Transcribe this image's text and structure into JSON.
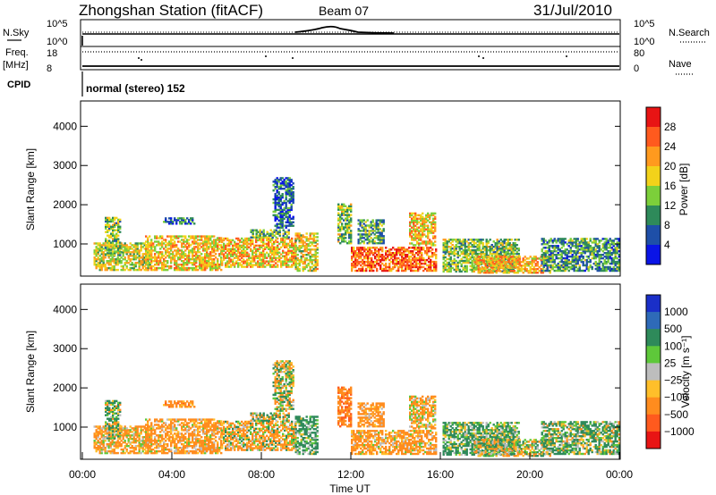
{
  "header": {
    "title": "Zhongshan Station (fitACF)",
    "beam": "Beam 07",
    "date": "31/Jul/2010"
  },
  "strip_panels": {
    "nsky_label": "N.Sky",
    "nsearch_label": "N.Search",
    "log_ticks_left": [
      "10^5",
      "10^0"
    ],
    "log_ticks_right": [
      "10^5",
      "10^0"
    ],
    "freq_label": "Freq.",
    "freq_unit": "[MHz]",
    "freq_ticks": [
      "18",
      "8"
    ],
    "nave_label": "Nave",
    "nave_ticks": [
      "80",
      "0"
    ],
    "cpid_label": "CPID",
    "cpid_text": "normal (stereo) 152"
  },
  "colors": {
    "power_scale": [
      "#0a14e6",
      "#1e4fa8",
      "#2e8a5a",
      "#7ccf3a",
      "#f2d21a",
      "#ff9a1e",
      "#ff5a1e",
      "#e81414"
    ],
    "velocity_scale": [
      "#e81414",
      "#ff5a1e",
      "#ff8c1e",
      "#ffbf2a",
      "#bdbdbd",
      "#5ec83a",
      "#2e8a5a",
      "#2e6ab8",
      "#1a2fc8"
    ],
    "ground_scatter": "#b8b8b8"
  },
  "chart_data": [
    {
      "type": "heatmap",
      "parameter": "Power",
      "ylabel": "Slant Range [km]",
      "ylim": [
        180,
        4600
      ],
      "y_ticks": [
        "1000",
        "2000",
        "3000",
        "4000"
      ],
      "xlim_hours": [
        0,
        24
      ],
      "colorbar_label": "Power [dB]",
      "colorbar_ticks": [
        "4",
        "8",
        "12",
        "16",
        "20",
        "24",
        "28"
      ],
      "colorbar_range": [
        0,
        32
      ],
      "scatter_regions": [
        {
          "t": [
            0.5,
            3.0
          ],
          "r": [
            320,
            1000
          ],
          "mean": 17
        },
        {
          "t": [
            1.0,
            1.7
          ],
          "r": [
            700,
            1650
          ],
          "mean": 14
        },
        {
          "t": [
            2.8,
            6.2
          ],
          "r": [
            320,
            1200
          ],
          "mean": 19
        },
        {
          "t": [
            3.6,
            5.0
          ],
          "r": [
            1500,
            1650
          ],
          "mean": 7
        },
        {
          "t": [
            6.2,
            9.5
          ],
          "r": [
            400,
            1150
          ],
          "mean": 20
        },
        {
          "t": [
            7.5,
            9.2
          ],
          "r": [
            1150,
            1350
          ],
          "mean": 12
        },
        {
          "t": [
            8.5,
            9.4
          ],
          "r": [
            1400,
            2700
          ],
          "mean": 7
        },
        {
          "t": [
            9.5,
            10.5
          ],
          "r": [
            300,
            1250
          ],
          "mean": 18
        },
        {
          "t": [
            11.4,
            12.0
          ],
          "r": [
            1000,
            2000
          ],
          "mean": 14
        },
        {
          "t": [
            12.0,
            15.8
          ],
          "r": [
            300,
            900
          ],
          "mean": 25
        },
        {
          "t": [
            12.3,
            13.5
          ],
          "r": [
            1000,
            1600
          ],
          "mean": 11
        },
        {
          "t": [
            14.6,
            15.8
          ],
          "r": [
            950,
            1800
          ],
          "mean": 19
        },
        {
          "t": [
            16.1,
            19.5
          ],
          "r": [
            280,
            1100
          ],
          "mean": 14
        },
        {
          "t": [
            17.5,
            21.0
          ],
          "r": [
            250,
            700
          ],
          "mean": 21
        },
        {
          "t": [
            20.5,
            24.0
          ],
          "r": [
            300,
            1150
          ],
          "mean": 10
        }
      ]
    },
    {
      "type": "heatmap",
      "parameter": "Velocity",
      "ylabel": "Slant Range [km]",
      "ylim": [
        180,
        4600
      ],
      "y_ticks": [
        "1000",
        "2000",
        "3000",
        "4000"
      ],
      "xlim_hours": [
        0,
        24
      ],
      "x_ticks": [
        "00:00",
        "04:00",
        "08:00",
        "12:00",
        "16:00",
        "20:00",
        "00:00"
      ],
      "xlabel": "Time UT",
      "colorbar_label": "Velocity [m s⁻¹]",
      "colorbar_ticks": [
        "1000",
        "500",
        "100",
        "25",
        "−25",
        "−100",
        "−500",
        "−1000"
      ],
      "velocity_bins": [
        -1000,
        -500,
        -100,
        -25,
        25,
        100,
        500,
        1000
      ],
      "scatter_regions": [
        {
          "t": [
            0.5,
            3.0
          ],
          "r": [
            320,
            1000
          ],
          "mean": -150
        },
        {
          "t": [
            1.0,
            1.7
          ],
          "r": [
            700,
            1650
          ],
          "mean": 80
        },
        {
          "t": [
            2.8,
            6.2
          ],
          "r": [
            320,
            1200
          ],
          "mean": -200
        },
        {
          "t": [
            3.6,
            5.0
          ],
          "r": [
            1500,
            1650
          ],
          "mean": -300
        },
        {
          "t": [
            6.2,
            9.5
          ],
          "r": [
            400,
            1150
          ],
          "mean": -100
        },
        {
          "t": [
            7.5,
            9.2
          ],
          "r": [
            1150,
            1350
          ],
          "mean": 0
        },
        {
          "t": [
            8.5,
            9.4
          ],
          "r": [
            1400,
            2700
          ],
          "mean": 0
        },
        {
          "t": [
            9.5,
            10.5
          ],
          "r": [
            300,
            1250
          ],
          "mean": 200
        },
        {
          "t": [
            11.4,
            12.0
          ],
          "r": [
            1000,
            2000
          ],
          "mean": -400
        },
        {
          "t": [
            12.0,
            15.8
          ],
          "r": [
            300,
            900
          ],
          "mean": -200
        },
        {
          "t": [
            12.3,
            13.5
          ],
          "r": [
            1000,
            1600
          ],
          "mean": -250
        },
        {
          "t": [
            14.6,
            15.8
          ],
          "r": [
            950,
            1800
          ],
          "mean": -150
        },
        {
          "t": [
            16.1,
            19.5
          ],
          "r": [
            280,
            1100
          ],
          "mean": 150
        },
        {
          "t": [
            17.5,
            21.0
          ],
          "r": [
            250,
            700
          ],
          "mean": 0
        },
        {
          "t": [
            20.5,
            24.0
          ],
          "r": [
            300,
            1150
          ],
          "mean": 100
        }
      ]
    }
  ]
}
